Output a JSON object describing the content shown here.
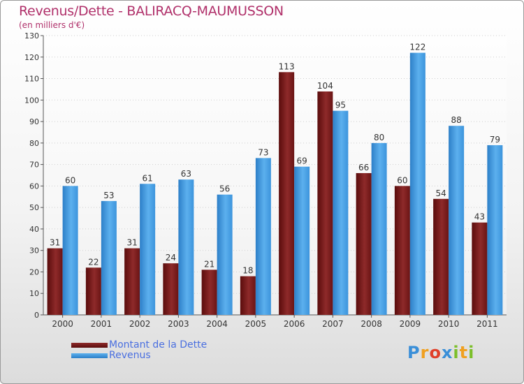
{
  "title": "Revenus/Dette - BALIRACQ-MAUMUSSON",
  "subtitle": "(en milliers d'€)",
  "legend": {
    "debt": "Montant de la Dette",
    "revenue": "Revenus"
  },
  "logo": {
    "letters": [
      "P",
      "r",
      "o",
      "x",
      "i",
      "t",
      "i"
    ],
    "colors": [
      "#3a8fd8",
      "#f0a020",
      "#e0402a",
      "#3a8fd8",
      "#7cbf2a",
      "#f0a020",
      "#7cbf2a"
    ]
  },
  "chart_data": {
    "type": "bar",
    "title": "Revenus/Dette - BALIRACQ-MAUMUSSON",
    "ylabel": "(en milliers d'€)",
    "xlabel": "",
    "ylim": [
      0,
      130
    ],
    "yticks": [
      0,
      10,
      20,
      30,
      40,
      50,
      60,
      70,
      80,
      90,
      100,
      110,
      120,
      130
    ],
    "grid": true,
    "categories": [
      "2000",
      "2001",
      "2002",
      "2003",
      "2004",
      "2005",
      "2006",
      "2007",
      "2008",
      "2009",
      "2010",
      "2011"
    ],
    "series": [
      {
        "name": "Montant de la Dette",
        "color": "#7a1818",
        "values": [
          31,
          22,
          31,
          24,
          21,
          18,
          113,
          104,
          66,
          60,
          54,
          43
        ]
      },
      {
        "name": "Revenus",
        "color": "#3d98e0",
        "values": [
          60,
          53,
          61,
          63,
          56,
          73,
          69,
          95,
          80,
          122,
          88,
          79
        ]
      }
    ]
  }
}
